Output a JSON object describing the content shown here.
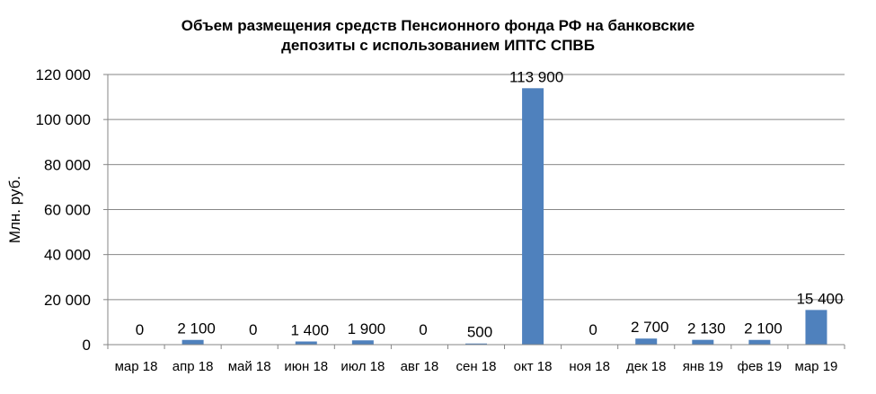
{
  "chart_data": {
    "type": "bar",
    "title": "Объем размещения средств Пенсионного фонда РФ  на банковские депозиты с использованием ИПТС СПВБ",
    "title_lines": [
      "Объем размещения средств Пенсионного фонда РФ  на банковские",
      "депозиты с использованием ИПТС СПВБ"
    ],
    "xlabel": "",
    "ylabel": "Млн. руб.",
    "ylim": [
      0,
      120000
    ],
    "yticks": [
      0,
      20000,
      40000,
      60000,
      80000,
      100000,
      120000
    ],
    "ytick_labels": [
      "0",
      "20 000",
      "40 000",
      "60 000",
      "80 000",
      "100 000",
      "120 000"
    ],
    "grid": true,
    "legend": "none",
    "categories": [
      "мар 18",
      "апр 18",
      "май 18",
      "июн 18",
      "июл 18",
      "авг 18",
      "сен 18",
      "окт 18",
      "ноя 18",
      "дек 18",
      "янв 19",
      "фев 19",
      "мар 19"
    ],
    "values": [
      0,
      2100,
      0,
      1400,
      1900,
      0,
      500,
      113900,
      0,
      2700,
      2130,
      2100,
      15400
    ],
    "data_labels": [
      "0",
      "2 100",
      "0",
      "1 400",
      "1 900",
      "0",
      "500",
      "113 900",
      "0",
      "2 700",
      "2 130",
      "2 100",
      "15 400"
    ],
    "bar_color": "#4F81BD",
    "grid_color": "#868686",
    "axis_color": "#868686"
  }
}
